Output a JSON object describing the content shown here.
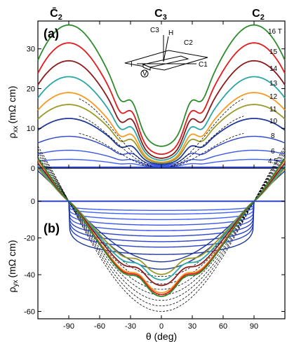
{
  "chart_data": [
    {
      "panel": "(a)",
      "type": "line",
      "xlabel": "θ (deg)",
      "ylabel": "ρxx (mΩ cm)",
      "xlim": [
        -120,
        120
      ],
      "ylim": [
        0,
        37
      ],
      "xticks": [
        -90,
        -60,
        -30,
        0,
        30,
        60,
        90
      ],
      "yticks": [
        0,
        10,
        20,
        30
      ],
      "top_labels": [
        {
          "text": "C̄2",
          "x": -90
        },
        {
          "text": "C3",
          "x": 0
        },
        {
          "text": "C2",
          "x": 90
        }
      ],
      "inset_labels": [
        "C3",
        "H",
        "C2",
        "I",
        "C1",
        "V"
      ],
      "series": [
        {
          "name": "16 T",
          "color": "#2e8b2e",
          "peak": 36,
          "shoulder": 18,
          "center": 5.5
        },
        {
          "name": "15",
          "color": "#e41a1c",
          "peak": 31.5,
          "shoulder": 16,
          "center": 3.5
        },
        {
          "name": "14",
          "color": "#8b1a1a",
          "peak": 27,
          "shoulder": 14.5,
          "center": 2.5
        },
        {
          "name": "13",
          "color": "#2ba6a6",
          "peak": 23,
          "shoulder": 12,
          "center": 2
        },
        {
          "name": "12",
          "color": "#f59a23",
          "peak": 19,
          "shoulder": 10,
          "center": 1.5
        },
        {
          "name": "11",
          "color": "#9a9a2a",
          "peak": 16,
          "shoulder": 8.5,
          "center": 1.3
        },
        {
          "name": "10",
          "color": "#1f3a9a",
          "peak": 12.5,
          "shoulder": 6.5,
          "center": 1
        },
        {
          "name": "8",
          "color": "#2b44c9",
          "peak": 8,
          "shoulder": 4.5,
          "center": 0.8
        },
        {
          "name": "6",
          "color": "#3a56e6",
          "peak": 4.5,
          "shoulder": 2.5,
          "center": 0.6
        },
        {
          "name": "4.5",
          "color": "#4060ff",
          "peak": 2.2,
          "shoulder": 1.3,
          "center": 0.4
        }
      ],
      "fit_style": "dashed black"
    },
    {
      "panel": "(b)",
      "type": "line",
      "xlabel": "θ (deg)",
      "ylabel": "ρyx (mΩ cm)",
      "xlim": [
        -120,
        120
      ],
      "ylim": [
        -64,
        18
      ],
      "xticks": [
        -90,
        -60,
        -30,
        0,
        30,
        60,
        90
      ],
      "yticks": [
        -60,
        -40,
        -20,
        0
      ],
      "series_minima": [
        -52,
        -51,
        -50,
        -46,
        -43,
        -40,
        -37,
        -33,
        -29,
        -25,
        -22,
        -19,
        -16,
        -13,
        -10,
        -7,
        -5
      ],
      "fit_minima": [
        -60,
        -57,
        -54,
        -51,
        -48,
        -45,
        -41
      ],
      "zero_crossing_x": [
        -90,
        90
      ],
      "fit_style": "dashed black"
    }
  ],
  "axes": {
    "x_tick_labels": [
      "-90",
      "-60",
      "-30",
      "0",
      "30",
      "60",
      "90"
    ],
    "a_y_tick_labels": [
      "0",
      "10",
      "20",
      "30"
    ],
    "b_y_tick_labels": [
      "-60",
      "-40",
      "-20",
      "0"
    ],
    "xlabel": "θ (deg)",
    "a_ylabel_main": "ρ",
    "a_ylabel_sub": "xx",
    "a_ylabel_unit": "(mΩ cm)",
    "b_ylabel_main": "ρ",
    "b_ylabel_sub": "yx",
    "b_ylabel_unit": "(mΩ cm)"
  },
  "labels": {
    "panel_a": "(a)",
    "panel_b": "(b)",
    "top_c2bar": "C̄",
    "top_c2bar_sub": "2",
    "top_c3": "C",
    "top_c3_sub": "3",
    "top_c2": "C",
    "top_c2_sub": "2",
    "field_16": "16 T",
    "field_15": "15",
    "field_14": "14",
    "field_13": "13",
    "field_12": "12",
    "field_11": "11",
    "field_10": "10",
    "field_8": "8",
    "field_6": "6",
    "field_45": "4.5",
    "inset_c3": "C3",
    "inset_h": "H",
    "inset_c2": "C2",
    "inset_i": "I",
    "inset_c1": "C1",
    "inset_v": "V"
  }
}
